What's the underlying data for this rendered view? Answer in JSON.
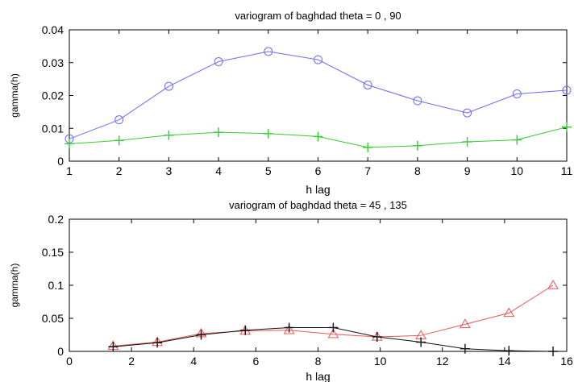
{
  "chart_data": [
    {
      "type": "line",
      "title": "variogram of baghdad theta = 0 , 90",
      "xlabel": "h lag",
      "ylabel": "gamma(h)",
      "xlim": [
        1,
        11
      ],
      "ylim": [
        0,
        0.04
      ],
      "xticks": [
        1,
        2,
        3,
        4,
        5,
        6,
        7,
        8,
        9,
        10,
        11
      ],
      "yticks": [
        0,
        0.01,
        0.02,
        0.03,
        0.04
      ],
      "xtick_labels": [
        "1",
        "2",
        "3",
        "4",
        "5",
        "6",
        "7",
        "8",
        "9",
        "10",
        "11"
      ],
      "ytick_labels": [
        "0",
        "0.01",
        "0.02",
        "0.03",
        "0.04"
      ],
      "grid": false,
      "series": [
        {
          "marker": "circle",
          "color": "#6a6aff",
          "x": [
            1,
            2,
            3,
            4,
            5,
            6,
            7,
            8,
            9,
            10,
            11
          ],
          "y": [
            0.0068,
            0.0126,
            0.0228,
            0.0303,
            0.0334,
            0.0309,
            0.0232,
            0.0184,
            0.0147,
            0.0205,
            0.0216
          ]
        },
        {
          "marker": "plus",
          "color": "#33cc33",
          "x": [
            1,
            2,
            3,
            4,
            5,
            6,
            7,
            8,
            9,
            10,
            11
          ],
          "y": [
            0.0053,
            0.0063,
            0.0079,
            0.0088,
            0.0084,
            0.0075,
            0.0042,
            0.0047,
            0.0059,
            0.0065,
            0.0104
          ]
        }
      ]
    },
    {
      "type": "line",
      "title": "variogram of baghdad theta = 45 , 135",
      "xlabel": "h lag",
      "ylabel": "gamma(h)",
      "xlim": [
        0,
        16
      ],
      "ylim": [
        0,
        0.2
      ],
      "xticks": [
        0,
        2,
        4,
        6,
        8,
        10,
        12,
        14,
        16
      ],
      "yticks": [
        0,
        0.05,
        0.1,
        0.15,
        0.2
      ],
      "xtick_labels": [
        "0",
        "2",
        "4",
        "6",
        "8",
        "10",
        "12",
        "14",
        "16"
      ],
      "ytick_labels": [
        "0",
        "0.05",
        "0.1",
        "0.15",
        "0.2"
      ],
      "grid": false,
      "series": [
        {
          "marker": "triangle",
          "color": "#ee5555",
          "x": [
            1.41,
            2.83,
            4.24,
            5.66,
            7.07,
            8.49,
            9.9,
            11.31,
            12.73,
            14.14,
            15.56
          ],
          "y": [
            0.008,
            0.014,
            0.027,
            0.031,
            0.032,
            0.026,
            0.022,
            0.024,
            0.041,
            0.058,
            0.1
          ]
        },
        {
          "marker": "plus",
          "color": "#111111",
          "x": [
            1.41,
            2.83,
            4.24,
            5.66,
            7.07,
            8.49,
            9.9,
            11.31,
            12.73,
            14.14,
            15.56
          ],
          "y": [
            0.007,
            0.013,
            0.025,
            0.032,
            0.036,
            0.036,
            0.022,
            0.014,
            0.004,
            0.001,
            0.0
          ]
        }
      ]
    }
  ]
}
